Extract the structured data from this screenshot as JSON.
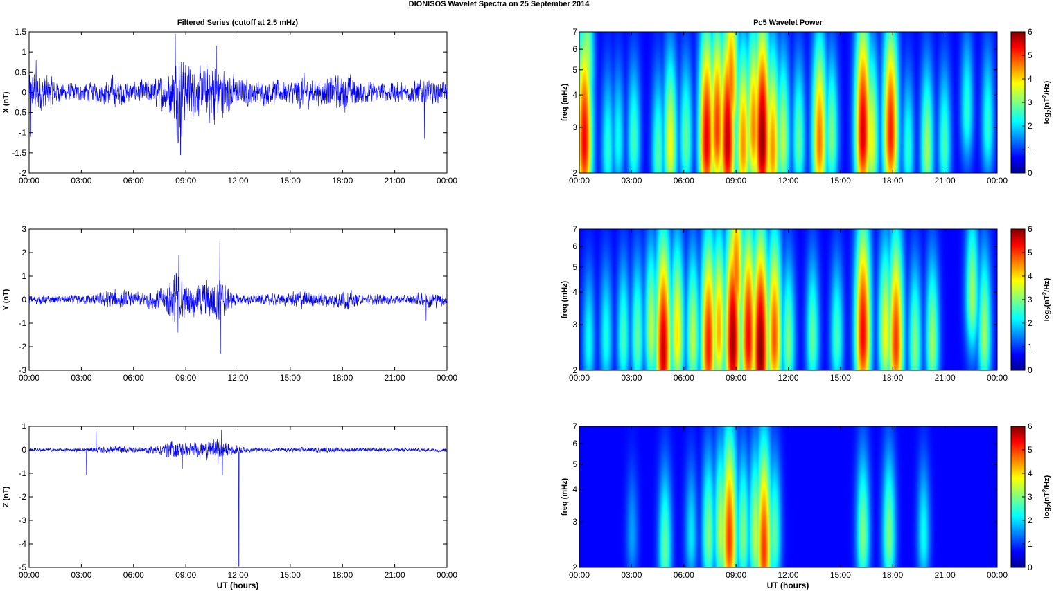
{
  "figure": {
    "title": "DIONISOS Wavelet Spectra on 25 September 2014"
  },
  "colors": {
    "series_line": "#0000ff",
    "spectrogram_background": "#00008f",
    "axes": "#000000"
  },
  "colormap": "jet",
  "chart_data": [
    {
      "type": "line",
      "panel": "X",
      "title": "Filtered Series (cutoff at 2.5 mHz)",
      "xlabel": "",
      "ylabel": "X (nT)",
      "xlim": [
        0,
        24
      ],
      "ylim": [
        -2,
        1.5
      ],
      "x_tick_labels": [
        "00:00",
        "03:00",
        "06:00",
        "09:00",
        "12:00",
        "15:00",
        "18:00",
        "21:00",
        "00:00"
      ],
      "y_ticks": [
        -2,
        -1.5,
        -1,
        -0.5,
        0,
        0.5,
        1,
        1.5
      ],
      "envelope": {
        "hours": [
          0,
          0.3,
          2,
          4,
          4.8,
          6,
          7,
          7.8,
          8.3,
          8.6,
          9,
          9.5,
          10,
          10.6,
          11,
          12,
          13,
          14,
          15,
          15.6,
          16.5,
          17.5,
          18.3,
          19,
          20,
          21.5,
          22.5,
          23.5,
          24
        ],
        "amplitude_nT": [
          0.55,
          0.7,
          0.25,
          0.3,
          0.45,
          0.3,
          0.4,
          0.55,
          0.8,
          1.4,
          0.95,
          0.7,
          0.7,
          1.05,
          0.8,
          0.45,
          0.35,
          0.35,
          0.35,
          0.55,
          0.35,
          0.5,
          0.55,
          0.35,
          0.3,
          0.3,
          0.4,
          0.3,
          0.3
        ]
      },
      "spikes": [
        {
          "hour": 0.1,
          "value": -1.1
        },
        {
          "hour": 0.4,
          "value": 0.8
        },
        {
          "hour": 8.4,
          "value": 1.45
        },
        {
          "hour": 8.7,
          "value": -1.55
        },
        {
          "hour": 10.75,
          "value": 1.15
        },
        {
          "hour": 22.7,
          "value": -1.15
        }
      ]
    },
    {
      "type": "line",
      "panel": "Y",
      "title": "",
      "xlabel": "",
      "ylabel": "Y (nT)",
      "xlim": [
        0,
        24
      ],
      "ylim": [
        -3,
        3
      ],
      "x_tick_labels": [
        "00:00",
        "03:00",
        "06:00",
        "09:00",
        "12:00",
        "15:00",
        "18:00",
        "21:00",
        "00:00"
      ],
      "y_ticks": [
        -3,
        -2,
        -1,
        0,
        1,
        2,
        3
      ],
      "envelope": {
        "hours": [
          0,
          2,
          4,
          4.8,
          6,
          7,
          7.8,
          8.4,
          9,
          9.6,
          10.3,
          10.9,
          11.4,
          12,
          13,
          14,
          15,
          15.6,
          16.5,
          17.6,
          18.3,
          19,
          20,
          21.5,
          23,
          24
        ],
        "amplitude_nT": [
          0.25,
          0.2,
          0.3,
          0.55,
          0.35,
          0.45,
          0.7,
          1.6,
          0.8,
          0.8,
          1.05,
          1.3,
          0.6,
          0.25,
          0.25,
          0.3,
          0.3,
          0.6,
          0.3,
          0.45,
          0.5,
          0.25,
          0.3,
          0.2,
          0.4,
          0.3
        ]
      },
      "spikes": [
        {
          "hour": 8.6,
          "value": 1.9
        },
        {
          "hour": 8.55,
          "value": -1.4
        },
        {
          "hour": 10.95,
          "value": 2.5
        },
        {
          "hour": 11.0,
          "value": -2.3
        },
        {
          "hour": 22.8,
          "value": -0.9
        }
      ]
    },
    {
      "type": "line",
      "panel": "Z",
      "title": "",
      "xlabel": "UT (hours)",
      "ylabel": "Z (nT)",
      "xlim": [
        0,
        24
      ],
      "ylim": [
        -5,
        1
      ],
      "x_tick_labels": [
        "00:00",
        "03:00",
        "06:00",
        "09:00",
        "12:00",
        "15:00",
        "18:00",
        "21:00",
        "00:00"
      ],
      "y_ticks": [
        -5,
        -4,
        -3,
        -2,
        -1,
        0,
        1
      ],
      "envelope": {
        "hours": [
          0,
          2,
          3.5,
          4.5,
          5.5,
          6.5,
          7.5,
          8.3,
          9,
          9.6,
          10.3,
          10.9,
          11.5,
          12.5,
          14,
          16,
          18,
          20,
          22,
          24
        ],
        "amplitude_nT": [
          0.1,
          0.08,
          0.12,
          0.18,
          0.18,
          0.15,
          0.25,
          0.5,
          0.35,
          0.35,
          0.45,
          0.6,
          0.3,
          0.12,
          0.1,
          0.12,
          0.12,
          0.1,
          0.1,
          0.1
        ]
      },
      "spikes": [
        {
          "hour": 3.3,
          "value": -1.05
        },
        {
          "hour": 3.85,
          "value": 0.8
        },
        {
          "hour": 8.8,
          "value": -0.8
        },
        {
          "hour": 11.05,
          "value": 0.85
        },
        {
          "hour": 11.1,
          "value": -1.05
        },
        {
          "hour": 12.05,
          "value": -4.95
        }
      ]
    },
    {
      "type": "heatmap",
      "panel": "X",
      "title": "Pc5 Wavelet Power",
      "xlabel": "",
      "ylabel": "freq (mHz)",
      "xlim": [
        0,
        24
      ],
      "ylim": [
        2,
        7
      ],
      "y_scale": "log",
      "x_tick_labels": [
        "00:00",
        "03:00",
        "06:00",
        "09:00",
        "12:00",
        "15:00",
        "18:00",
        "21:00",
        "00:00"
      ],
      "y_ticks": [
        2,
        3,
        4,
        5,
        6,
        7
      ],
      "colorbar_label": "log2(nT2/Hz)",
      "colorbar_ticks": [
        0,
        1,
        2,
        3,
        4,
        5,
        6
      ],
      "clim": [
        0,
        6
      ],
      "blobs": [
        {
          "hour": 0.25,
          "freq_mHz": 2.6,
          "power": 5.2
        },
        {
          "hour": 0.4,
          "freq_mHz": 5.0,
          "power": 3.0
        },
        {
          "hour": 1.6,
          "freq_mHz": 2.4,
          "power": 2.0
        },
        {
          "hour": 2.2,
          "freq_mHz": 2.6,
          "power": 1.8
        },
        {
          "hour": 3.1,
          "freq_mHz": 2.6,
          "power": 2.2
        },
        {
          "hour": 4.5,
          "freq_mHz": 2.3,
          "power": 2.3
        },
        {
          "hour": 5.2,
          "freq_mHz": 2.5,
          "power": 3.4
        },
        {
          "hour": 6.1,
          "freq_mHz": 2.6,
          "power": 2.4
        },
        {
          "hour": 7.3,
          "freq_mHz": 2.6,
          "power": 5.3
        },
        {
          "hour": 7.9,
          "freq_mHz": 2.9,
          "power": 4.8
        },
        {
          "hour": 8.5,
          "freq_mHz": 2.6,
          "power": 5.6
        },
        {
          "hour": 8.7,
          "freq_mHz": 4.3,
          "power": 4.4
        },
        {
          "hour": 9.4,
          "freq_mHz": 2.5,
          "power": 4.2
        },
        {
          "hour": 10.0,
          "freq_mHz": 2.9,
          "power": 4.3
        },
        {
          "hour": 10.5,
          "freq_mHz": 2.6,
          "power": 5.9
        },
        {
          "hour": 11.1,
          "freq_mHz": 2.4,
          "power": 4.2
        },
        {
          "hour": 11.7,
          "freq_mHz": 2.6,
          "power": 3.0
        },
        {
          "hour": 12.6,
          "freq_mHz": 2.6,
          "power": 2.4
        },
        {
          "hour": 13.8,
          "freq_mHz": 2.6,
          "power": 4.4
        },
        {
          "hour": 14.5,
          "freq_mHz": 2.7,
          "power": 2.6
        },
        {
          "hour": 16.3,
          "freq_mHz": 2.8,
          "power": 5.4
        },
        {
          "hour": 16.8,
          "freq_mHz": 2.6,
          "power": 3.4
        },
        {
          "hour": 17.9,
          "freq_mHz": 2.8,
          "power": 5.0
        },
        {
          "hour": 18.9,
          "freq_mHz": 2.4,
          "power": 2.0
        },
        {
          "hour": 20.0,
          "freq_mHz": 2.4,
          "power": 2.8
        },
        {
          "hour": 21.0,
          "freq_mHz": 2.5,
          "power": 2.2
        },
        {
          "hour": 22.3,
          "freq_mHz": 3.4,
          "power": 2.0
        },
        {
          "hour": 23.5,
          "freq_mHz": 3.0,
          "power": 2.0
        }
      ]
    },
    {
      "type": "heatmap",
      "panel": "Y",
      "title": "",
      "xlabel": "",
      "ylabel": "freq (mHz)",
      "xlim": [
        0,
        24
      ],
      "ylim": [
        2,
        7
      ],
      "y_scale": "log",
      "x_tick_labels": [
        "00:00",
        "03:00",
        "06:00",
        "09:00",
        "12:00",
        "15:00",
        "18:00",
        "21:00",
        "00:00"
      ],
      "y_ticks": [
        2,
        3,
        4,
        5,
        6,
        7
      ],
      "colorbar_label": "log2(nT2/Hz)",
      "colorbar_ticks": [
        0,
        1,
        2,
        3,
        4,
        5,
        6
      ],
      "clim": [
        0,
        6
      ],
      "blobs": [
        {
          "hour": 0.5,
          "freq_mHz": 2.5,
          "power": 1.8
        },
        {
          "hour": 1.5,
          "freq_mHz": 2.6,
          "power": 1.9
        },
        {
          "hour": 2.5,
          "freq_mHz": 2.6,
          "power": 2.2
        },
        {
          "hour": 3.3,
          "freq_mHz": 2.6,
          "power": 2.4
        },
        {
          "hour": 4.1,
          "freq_mHz": 2.8,
          "power": 3.0
        },
        {
          "hour": 4.8,
          "freq_mHz": 2.3,
          "power": 5.5
        },
        {
          "hour": 5.6,
          "freq_mHz": 2.7,
          "power": 3.6
        },
        {
          "hour": 6.5,
          "freq_mHz": 2.6,
          "power": 3.0
        },
        {
          "hour": 7.4,
          "freq_mHz": 2.4,
          "power": 5.0
        },
        {
          "hour": 8.0,
          "freq_mHz": 2.8,
          "power": 4.0
        },
        {
          "hour": 8.8,
          "freq_mHz": 2.5,
          "power": 5.8
        },
        {
          "hour": 9.0,
          "freq_mHz": 4.6,
          "power": 4.4
        },
        {
          "hour": 9.7,
          "freq_mHz": 2.6,
          "power": 5.2
        },
        {
          "hour": 10.4,
          "freq_mHz": 2.3,
          "power": 6.0
        },
        {
          "hour": 11.2,
          "freq_mHz": 2.6,
          "power": 4.6
        },
        {
          "hour": 12.0,
          "freq_mHz": 2.5,
          "power": 2.6
        },
        {
          "hour": 13.4,
          "freq_mHz": 2.6,
          "power": 2.4
        },
        {
          "hour": 14.8,
          "freq_mHz": 2.6,
          "power": 2.2
        },
        {
          "hour": 16.3,
          "freq_mHz": 2.7,
          "power": 5.2
        },
        {
          "hour": 17.6,
          "freq_mHz": 2.7,
          "power": 3.4
        },
        {
          "hour": 18.2,
          "freq_mHz": 2.5,
          "power": 4.8
        },
        {
          "hour": 19.3,
          "freq_mHz": 2.4,
          "power": 2.6
        },
        {
          "hour": 20.3,
          "freq_mHz": 2.5,
          "power": 2.8
        },
        {
          "hour": 22.6,
          "freq_mHz": 3.8,
          "power": 2.8
        },
        {
          "hour": 23.3,
          "freq_mHz": 2.7,
          "power": 2.8
        }
      ]
    },
    {
      "type": "heatmap",
      "panel": "Z",
      "title": "",
      "xlabel": "UT (hours)",
      "ylabel": "freq (mHz)",
      "xlim": [
        0,
        24
      ],
      "ylim": [
        2,
        7
      ],
      "y_scale": "log",
      "x_tick_labels": [
        "00:00",
        "03:00",
        "06:00",
        "09:00",
        "12:00",
        "15:00",
        "18:00",
        "21:00",
        "00:00"
      ],
      "y_ticks": [
        2,
        3,
        4,
        5,
        6,
        7
      ],
      "colorbar_label": "log2(nT2/Hz)",
      "colorbar_ticks": [
        0,
        1,
        2,
        3,
        4,
        5,
        6
      ],
      "clim": [
        0,
        6
      ],
      "blobs": [
        {
          "hour": 3.0,
          "freq_mHz": 2.6,
          "power": 1.1
        },
        {
          "hour": 4.9,
          "freq_mHz": 2.3,
          "power": 2.4
        },
        {
          "hour": 6.4,
          "freq_mHz": 2.6,
          "power": 1.6
        },
        {
          "hour": 7.4,
          "freq_mHz": 2.6,
          "power": 2.6
        },
        {
          "hour": 8.1,
          "freq_mHz": 2.7,
          "power": 3.0
        },
        {
          "hour": 8.6,
          "freq_mHz": 2.5,
          "power": 4.8
        },
        {
          "hour": 9.4,
          "freq_mHz": 2.6,
          "power": 2.6
        },
        {
          "hour": 10.1,
          "freq_mHz": 2.6,
          "power": 3.0
        },
        {
          "hour": 10.6,
          "freq_mHz": 2.3,
          "power": 4.8
        },
        {
          "hour": 11.2,
          "freq_mHz": 2.6,
          "power": 2.4
        },
        {
          "hour": 16.3,
          "freq_mHz": 2.6,
          "power": 2.6
        },
        {
          "hour": 17.8,
          "freq_mHz": 2.6,
          "power": 2.6
        },
        {
          "hour": 19.8,
          "freq_mHz": 2.6,
          "power": 1.8
        }
      ]
    }
  ]
}
